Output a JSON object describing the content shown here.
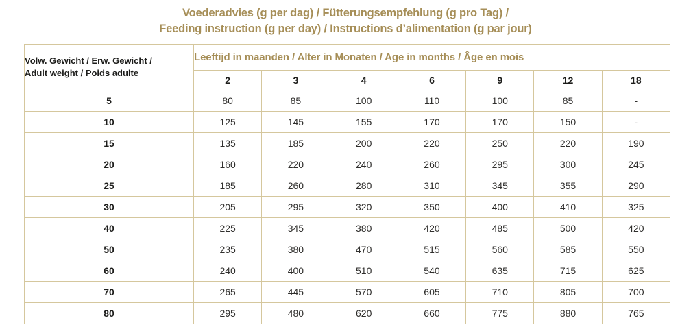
{
  "title": {
    "line1": "Voederadvies (g per dag) / Fütterungsempfehlung (g pro Tag) /",
    "line2": "Feeding instruction (g per day) / Instructions d’alimentation (g par jour)"
  },
  "colors": {
    "gold": "#a68e57",
    "border": "#d5c79d",
    "heading_text": "#1d1d1b",
    "value_text": "#2f2e2c"
  },
  "table": {
    "weight_header_line1": "Volw. Gewicht / Erw. Gewicht /",
    "weight_header_line2": "Adult weight / Poids adulte",
    "age_header": "Leeftijd in maanden / Alter in Monaten / Age in months / Âge en mois",
    "age_columns": [
      "2",
      "3",
      "4",
      "6",
      "9",
      "12",
      "18"
    ],
    "rows": [
      {
        "weight": "5",
        "values": [
          "80",
          "85",
          "100",
          "110",
          "100",
          "85",
          "-"
        ]
      },
      {
        "weight": "10",
        "values": [
          "125",
          "145",
          "155",
          "170",
          "170",
          "150",
          "-"
        ]
      },
      {
        "weight": "15",
        "values": [
          "135",
          "185",
          "200",
          "220",
          "250",
          "220",
          "190"
        ]
      },
      {
        "weight": "20",
        "values": [
          "160",
          "220",
          "240",
          "260",
          "295",
          "300",
          "245"
        ]
      },
      {
        "weight": "25",
        "values": [
          "185",
          "260",
          "280",
          "310",
          "345",
          "355",
          "290"
        ]
      },
      {
        "weight": "30",
        "values": [
          "205",
          "295",
          "320",
          "350",
          "400",
          "410",
          "325"
        ]
      },
      {
        "weight": "40",
        "values": [
          "225",
          "345",
          "380",
          "420",
          "485",
          "500",
          "420"
        ]
      },
      {
        "weight": "50",
        "values": [
          "235",
          "380",
          "470",
          "515",
          "560",
          "585",
          "550"
        ]
      },
      {
        "weight": "60",
        "values": [
          "240",
          "400",
          "510",
          "540",
          "635",
          "715",
          "625"
        ]
      },
      {
        "weight": "70",
        "values": [
          "265",
          "445",
          "570",
          "605",
          "710",
          "805",
          "700"
        ]
      },
      {
        "weight": "80",
        "values": [
          "295",
          "480",
          "620",
          "660",
          "775",
          "880",
          "765"
        ]
      }
    ]
  }
}
